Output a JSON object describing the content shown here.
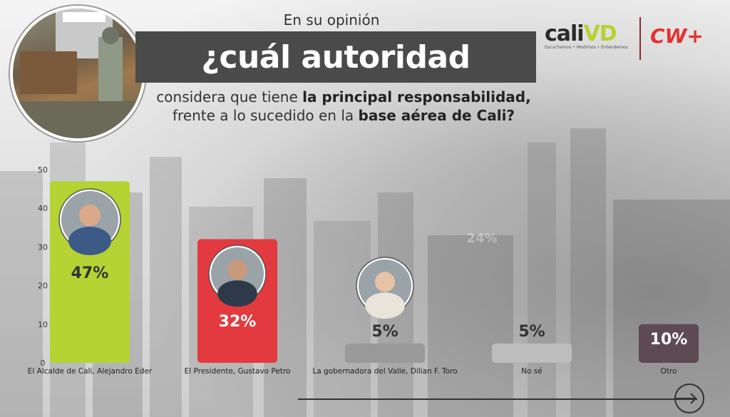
{
  "header": {
    "pre": "En su opinión",
    "title": "¿cuál autoridad",
    "line1_a": "considera que tiene ",
    "line1_b": "la principal responsabilidad,",
    "line2_a": "frente a lo sucedido en la ",
    "line2_b": "base aérea de Cali?"
  },
  "logos": {
    "cali_main": "cali",
    "cali_accent": "VD",
    "cali_tag": "Escuchamos • Medimos • Entendemos",
    "cw": "CW+"
  },
  "chart_data": {
    "type": "bar",
    "categories": [
      "El Alcalde de Cali, Alejandro Eder",
      "El Presidente, Gustavo Petro",
      "La gobernadora del Valle, Dilian F. Toro",
      "No sé",
      "Otro"
    ],
    "values": [
      47,
      32,
      5,
      5,
      10
    ],
    "value_labels": [
      "47%",
      "32%",
      "5%",
      "5%",
      "10%"
    ],
    "colors": [
      "#b6d233",
      "#e23a3f",
      "#9a9a9a",
      "#bdbdbd",
      "#5d4a52"
    ],
    "label_colors": [
      "#333333",
      "#ffffff",
      "#333333",
      "#333333",
      "#ffffff"
    ],
    "ylim": [
      0,
      50
    ],
    "yticks": [
      0,
      10,
      20,
      30,
      40,
      50
    ],
    "grid": false,
    "watermark": "24%"
  }
}
